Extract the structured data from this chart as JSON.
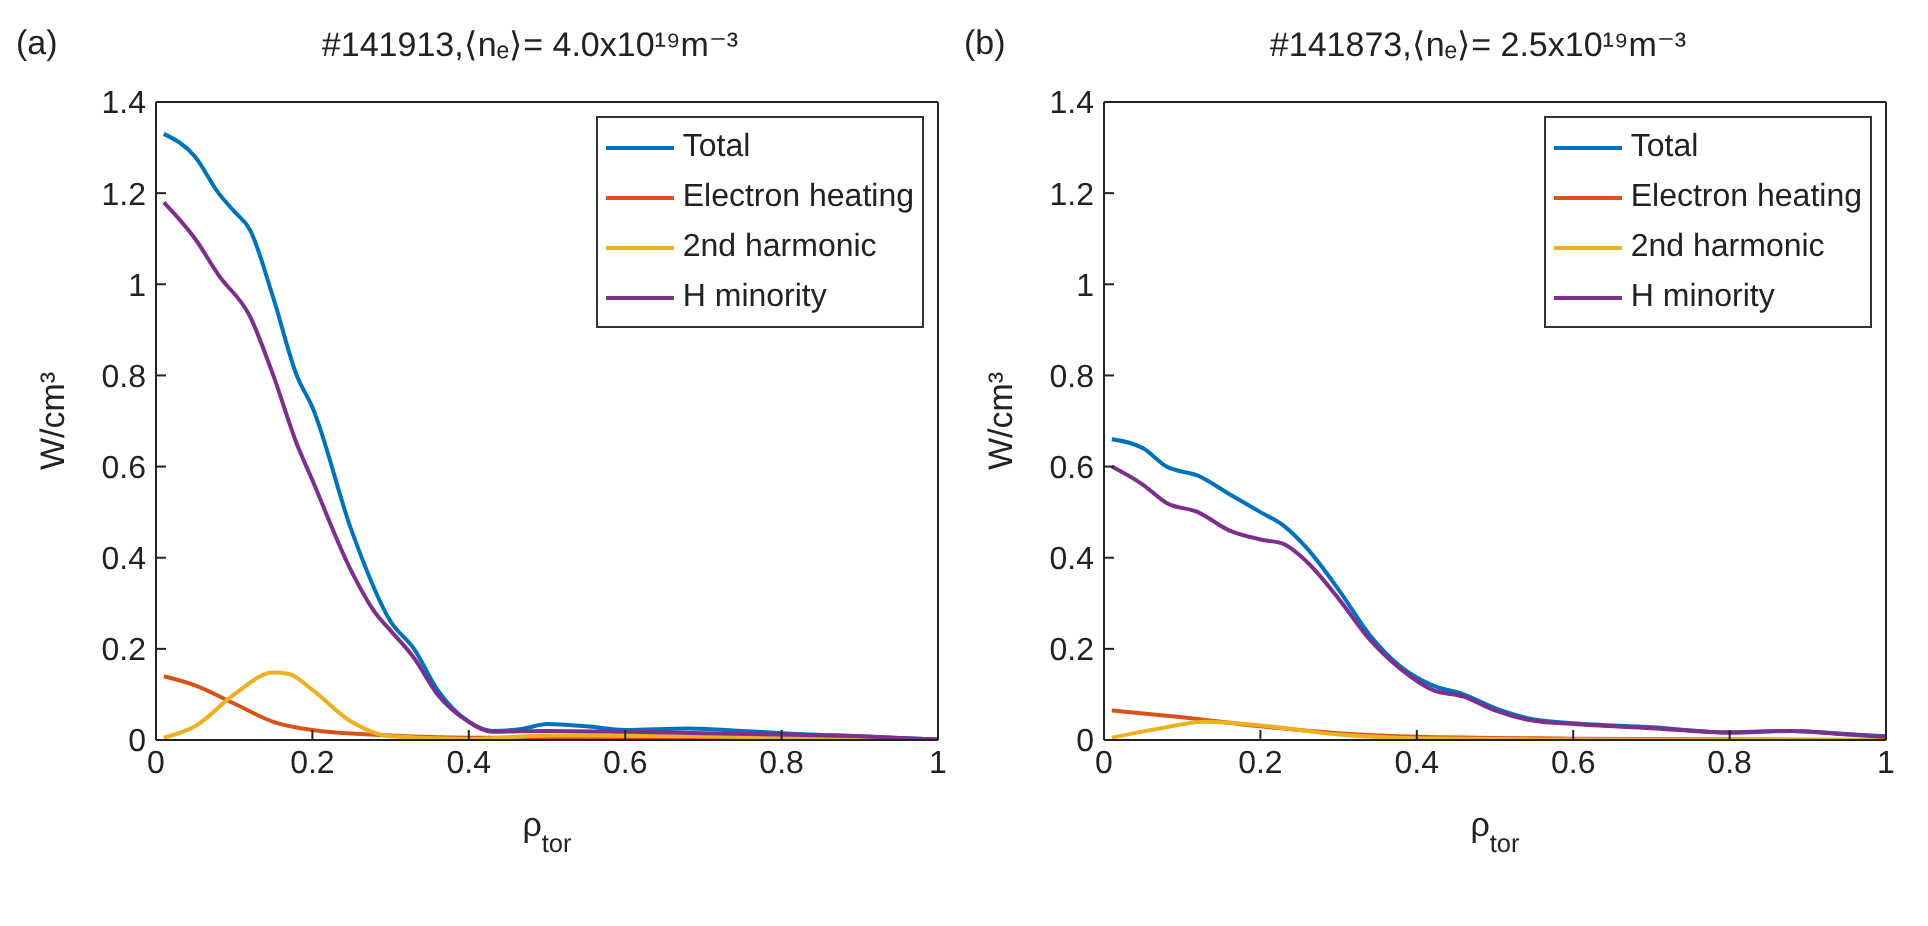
{
  "chart_data": [
    {
      "type": "line",
      "title": "#141913,⟨nₑ⟩= 4.0x10¹⁹m⁻³",
      "annotations": [
        "(a)"
      ],
      "xlabel": "ρ$_{tor}$",
      "ylabel": "W/cm³",
      "xlim": [
        0,
        1
      ],
      "xticks": [
        0,
        0.2,
        0.4,
        0.6,
        0.8,
        1
      ],
      "ylim": [
        0,
        1.4
      ],
      "yticks": [
        0,
        0.2,
        0.4,
        0.6,
        0.8,
        1,
        1.2,
        1.4
      ],
      "legend": "top right",
      "series": [
        {
          "name": "Total",
          "color": "#0072bd",
          "x": [
            0.01,
            0.05,
            0.08,
            0.1,
            0.12,
            0.15,
            0.18,
            0.2,
            0.25,
            0.3,
            0.33,
            0.36,
            0.4,
            0.43,
            0.47,
            0.5,
            0.55,
            0.6,
            0.68,
            0.75,
            0.8,
            0.9,
            1
          ],
          "values": [
            1.33,
            1.28,
            1.2,
            1.16,
            1.12,
            0.97,
            0.8,
            0.73,
            0.46,
            0.26,
            0.2,
            0.11,
            0.04,
            0.02,
            0.025,
            0.035,
            0.03,
            0.022,
            0.025,
            0.02,
            0.015,
            0.008,
            0.001
          ]
        },
        {
          "name": "Electron heating",
          "color": "#d95319",
          "x": [
            0.01,
            0.05,
            0.1,
            0.15,
            0.2,
            0.3,
            0.4,
            0.6,
            1
          ],
          "values": [
            0.14,
            0.12,
            0.08,
            0.04,
            0.022,
            0.01,
            0.005,
            0.004,
            0
          ]
        },
        {
          "name": "2nd harmonic",
          "color": "#edb120",
          "x": [
            0.01,
            0.05,
            0.1,
            0.15,
            0.17,
            0.2,
            0.25,
            0.3,
            0.4,
            0.5,
            0.7,
            1
          ],
          "values": [
            0.005,
            0.03,
            0.1,
            0.148,
            0.145,
            0.11,
            0.04,
            0.008,
            0.002,
            0.01,
            0.008,
            0
          ]
        },
        {
          "name": "H minority",
          "color": "#7e2f8e",
          "x": [
            0.01,
            0.05,
            0.08,
            0.12,
            0.15,
            0.18,
            0.2,
            0.25,
            0.28,
            0.3,
            0.33,
            0.36,
            0.4,
            0.43,
            0.5,
            0.6,
            0.7,
            0.8,
            0.9,
            1
          ],
          "values": [
            1.18,
            1.1,
            1.02,
            0.93,
            0.8,
            0.65,
            0.57,
            0.37,
            0.28,
            0.24,
            0.18,
            0.1,
            0.04,
            0.018,
            0.02,
            0.018,
            0.015,
            0.012,
            0.008,
            0.001
          ]
        }
      ]
    },
    {
      "type": "line",
      "title": "#141873,⟨nₑ⟩= 2.5x10¹⁹m⁻³",
      "annotations": [
        "(b)"
      ],
      "xlabel": "ρ$_{tor}$",
      "ylabel": "W/cm³",
      "xlim": [
        0,
        1
      ],
      "xticks": [
        0,
        0.2,
        0.4,
        0.6,
        0.8,
        1
      ],
      "ylim": [
        0,
        1.4
      ],
      "yticks": [
        0,
        0.2,
        0.4,
        0.6,
        0.8,
        1,
        1.2,
        1.4
      ],
      "legend": "top right",
      "series": [
        {
          "name": "Total",
          "color": "#0072bd",
          "x": [
            0.01,
            0.05,
            0.08,
            0.12,
            0.16,
            0.2,
            0.23,
            0.26,
            0.3,
            0.34,
            0.38,
            0.42,
            0.46,
            0.5,
            0.55,
            0.6,
            0.7,
            0.8,
            0.88,
            0.95,
            1
          ],
          "values": [
            0.66,
            0.64,
            0.6,
            0.58,
            0.54,
            0.5,
            0.47,
            0.42,
            0.33,
            0.23,
            0.16,
            0.12,
            0.1,
            0.07,
            0.045,
            0.037,
            0.028,
            0.017,
            0.02,
            0.013,
            0.008
          ]
        },
        {
          "name": "Electron heating",
          "color": "#d95319",
          "x": [
            0.01,
            0.1,
            0.2,
            0.3,
            0.4,
            0.6,
            1
          ],
          "values": [
            0.065,
            0.05,
            0.03,
            0.015,
            0.007,
            0.003,
            0
          ]
        },
        {
          "name": "2nd harmonic",
          "color": "#edb120",
          "x": [
            0.01,
            0.07,
            0.13,
            0.2,
            0.3,
            0.4,
            0.6,
            1
          ],
          "values": [
            0.005,
            0.025,
            0.04,
            0.032,
            0.012,
            0.004,
            0.001,
            0
          ]
        },
        {
          "name": "H minority",
          "color": "#7e2f8e",
          "x": [
            0.01,
            0.05,
            0.08,
            0.12,
            0.16,
            0.2,
            0.23,
            0.26,
            0.3,
            0.34,
            0.38,
            0.42,
            0.46,
            0.5,
            0.55,
            0.6,
            0.7,
            0.8,
            0.88,
            0.95,
            1
          ],
          "values": [
            0.6,
            0.56,
            0.52,
            0.5,
            0.46,
            0.44,
            0.43,
            0.39,
            0.31,
            0.22,
            0.155,
            0.11,
            0.095,
            0.065,
            0.042,
            0.035,
            0.026,
            0.016,
            0.02,
            0.012,
            0.007
          ]
        }
      ]
    }
  ]
}
